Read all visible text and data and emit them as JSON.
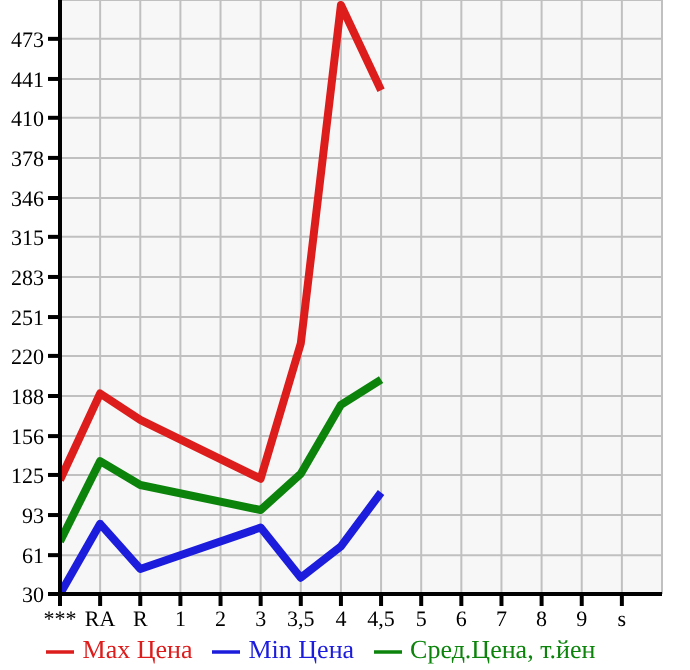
{
  "chart_data": {
    "type": "line",
    "categories": [
      "***",
      "RA",
      "R",
      "1",
      "2",
      "3",
      "3,5",
      "4",
      "4,5",
      "5",
      "6",
      "7",
      "8",
      "9",
      "s"
    ],
    "series": [
      {
        "name": "Max Цена",
        "color": "#dd1c1c",
        "values": [
          121,
          190,
          169,
          null,
          null,
          122,
          230,
          500,
          432,
          null,
          null,
          null,
          null,
          null,
          null
        ]
      },
      {
        "name": "Min Цена",
        "color": "#1c1cdd",
        "values": [
          30,
          86,
          50,
          null,
          null,
          83,
          43,
          68,
          111,
          null,
          null,
          null,
          null,
          null,
          null
        ]
      },
      {
        "name": "Сред.Цена, т.йен",
        "color": "#0c840c",
        "values": [
          72,
          136,
          117,
          null,
          null,
          97,
          126,
          181,
          201,
          null,
          null,
          null,
          null,
          null,
          null
        ]
      }
    ],
    "ylim": [
      30,
      504
    ],
    "yticks": [
      30,
      61,
      93,
      125,
      156,
      188,
      220,
      251,
      283,
      315,
      346,
      378,
      410,
      441,
      473
    ],
    "grid": true,
    "legend": "bottom",
    "marker": "none",
    "line_style": "solid"
  }
}
